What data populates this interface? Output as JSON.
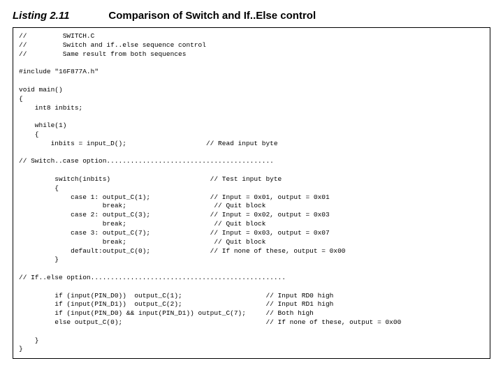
{
  "header": {
    "label": "Listing 2.11",
    "title": "Comparison of Switch and If..Else control"
  },
  "code": "//         SWITCH.C\n//         Switch and if..else sequence control\n//         Same result from both sequences\n\n#include \"16F877A.h\"\n\nvoid main()\n{\n    int8 inbits;\n\n    while(1)\n    {\n        inbits = input_D();                    // Read input byte\n\n// Switch..case option..........................................\n\n         switch(inbits)                         // Test input byte\n         {\n             case 1: output_C(1);               // Input = 0x01, output = 0x01\n                     break;                      // Quit block\n             case 2: output_C(3);               // Input = 0x02, output = 0x03\n                     break;                      // Quit block\n             case 3: output_C(7);               // Input = 0x03, output = 0x07\n                     break;                      // Quit block\n             default:output_C(0);               // If none of these, output = 0x00\n         }\n\n// If..else option.................................................\n\n         if (input(PIN_D0))  output_C(1);                     // Input RD0 high\n         if (input(PIN_D1))  output_C(2);                     // Input RD1 high\n         if (input(PIN_D0) && input(PIN_D1)) output_C(7);     // Both high\n         else output_C(0);                                    // If none of these, output = 0x00\n\n    }\n}"
}
